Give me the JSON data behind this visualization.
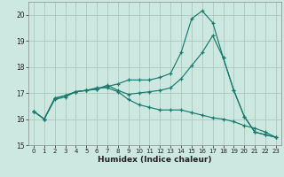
{
  "xlabel": "Humidex (Indice chaleur)",
  "bg_color": "#cce8e0",
  "grid_color": "#aaccbb",
  "line_color": "#1a7a6e",
  "xlim": [
    -0.5,
    23.5
  ],
  "ylim": [
    15,
    20.5
  ],
  "yticks": [
    15,
    16,
    17,
    18,
    19,
    20
  ],
  "xticks": [
    0,
    1,
    2,
    3,
    4,
    5,
    6,
    7,
    8,
    9,
    10,
    11,
    12,
    13,
    14,
    15,
    16,
    17,
    18,
    19,
    20,
    21,
    22,
    23
  ],
  "line1_x": [
    0,
    1,
    2,
    3,
    4,
    5,
    6,
    7,
    8,
    9,
    10,
    11,
    12,
    13,
    14,
    15,
    16,
    17,
    18,
    19,
    20,
    21,
    22,
    23
  ],
  "line1_y": [
    16.3,
    16.0,
    16.8,
    16.9,
    17.05,
    17.1,
    17.15,
    17.25,
    17.35,
    17.5,
    17.5,
    17.5,
    17.6,
    17.75,
    18.55,
    19.85,
    20.15,
    19.7,
    18.35,
    17.1,
    16.1,
    15.5,
    15.4,
    15.3
  ],
  "line2_x": [
    0,
    1,
    2,
    3,
    4,
    5,
    6,
    7,
    8,
    9,
    10,
    11,
    12,
    13,
    14,
    15,
    16,
    17,
    18,
    19,
    20,
    21,
    22,
    23
  ],
  "line2_y": [
    16.3,
    16.0,
    16.8,
    16.9,
    17.05,
    17.1,
    17.15,
    17.3,
    17.1,
    16.95,
    17.0,
    17.05,
    17.1,
    17.2,
    17.55,
    18.05,
    18.55,
    19.2,
    18.35,
    17.1,
    16.1,
    15.5,
    15.4,
    15.3
  ],
  "line3_x": [
    0,
    1,
    2,
    3,
    4,
    5,
    6,
    7,
    8,
    9,
    10,
    11,
    12,
    13,
    14,
    15,
    16,
    17,
    18,
    19,
    20,
    21,
    22,
    23
  ],
  "line3_y": [
    16.3,
    16.0,
    16.75,
    16.85,
    17.05,
    17.1,
    17.2,
    17.2,
    17.05,
    16.75,
    16.55,
    16.45,
    16.35,
    16.35,
    16.35,
    16.25,
    16.15,
    16.05,
    16.0,
    15.9,
    15.75,
    15.65,
    15.5,
    15.3
  ]
}
